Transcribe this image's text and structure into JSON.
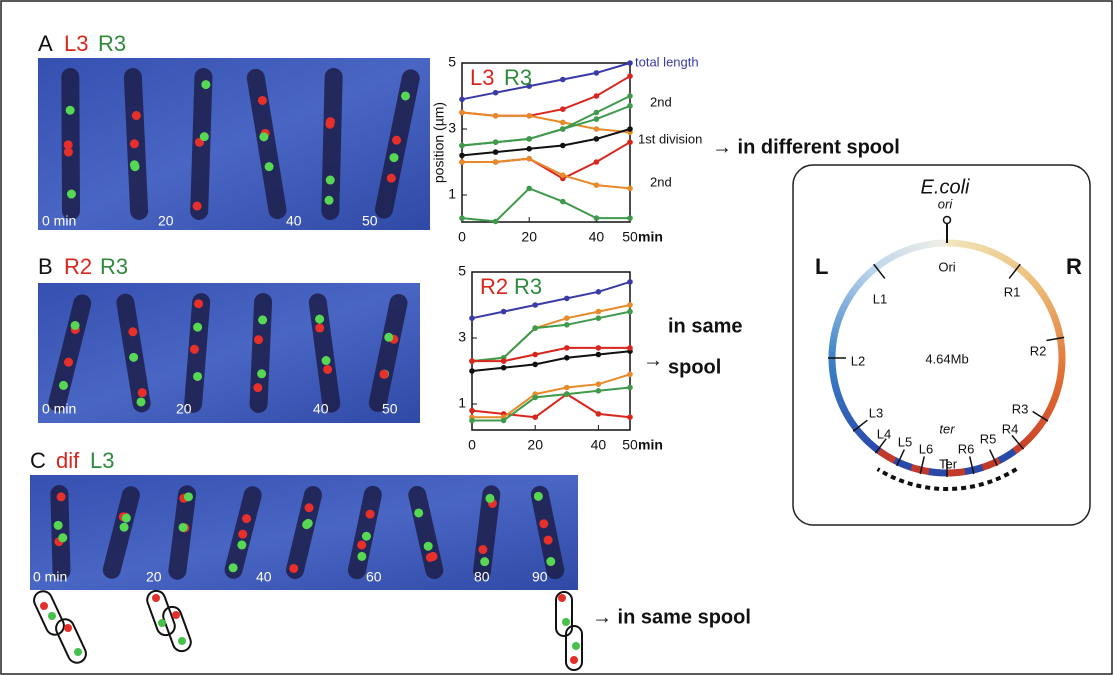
{
  "panel_a": {
    "label": "A",
    "probes": [
      {
        "text": "L3",
        "color": "#d9261c"
      },
      {
        "text": "R3",
        "color": "#2f8a3c"
      }
    ],
    "times": [
      "0 min",
      "20",
      "40",
      "50"
    ]
  },
  "panel_b": {
    "label": "B",
    "probes": [
      {
        "text": "R2",
        "color": "#d9261c"
      },
      {
        "text": "R3",
        "color": "#2f8a3c"
      }
    ],
    "times": [
      "0 min",
      "20",
      "40",
      "50"
    ]
  },
  "panel_c": {
    "label": "C",
    "probes": [
      {
        "text": "dif",
        "color": "#d9261c"
      },
      {
        "text": "L3",
        "color": "#2f8a3c"
      }
    ],
    "times": [
      "0 min",
      "20",
      "40",
      "60",
      "80",
      "90"
    ]
  },
  "chart_data": [
    {
      "type": "line",
      "y_label": "position (µm)",
      "x_unit": "min",
      "markers": [
        {
          "text": "L3",
          "color": "#d9261c"
        },
        {
          "text": "R3",
          "color": "#2f8a3c"
        }
      ],
      "annotations": [
        {
          "text": "total length",
          "color": "#3a3aa8"
        },
        {
          "text": "2nd",
          "color": "#111"
        },
        {
          "text": "1st division",
          "color": "#111"
        },
        {
          "text": "2nd",
          "color": "#111"
        }
      ],
      "x": [
        0,
        10,
        20,
        30,
        40,
        50
      ],
      "xlim": [
        0,
        50
      ],
      "ylim": [
        0,
        5
      ],
      "xticks": [
        0,
        20,
        40,
        50
      ],
      "yticks": [
        1,
        3,
        5
      ],
      "series": [
        {
          "color": "#3a3aa8",
          "values": [
            3.9,
            4.1,
            4.3,
            4.5,
            4.7,
            5.0
          ]
        },
        {
          "color": "#d9261c",
          "values": [
            3.5,
            3.4,
            3.4,
            3.6,
            4.0,
            4.6
          ]
        },
        {
          "color": "#e8892a",
          "values": [
            3.5,
            3.4,
            3.4,
            3.2,
            3.0,
            2.9
          ]
        },
        {
          "color": "#3f9a4c",
          "values": [
            2.5,
            2.6,
            2.7,
            3.0,
            3.5,
            4.0
          ]
        },
        {
          "color": "#3f9a4c",
          "values": [
            2.5,
            2.6,
            2.7,
            3.0,
            3.3,
            3.7
          ]
        },
        {
          "color": "#111111",
          "values": [
            2.2,
            2.3,
            2.4,
            2.5,
            2.7,
            3.0
          ]
        },
        {
          "color": "#d9261c",
          "values": [
            2.0,
            2.0,
            2.1,
            1.5,
            2.0,
            2.6
          ]
        },
        {
          "color": "#e8892a",
          "values": [
            2.0,
            2.0,
            2.1,
            1.6,
            1.3,
            1.2
          ]
        },
        {
          "color": "#3f9a4c",
          "values": [
            0.3,
            0.2,
            1.2,
            0.8,
            0.3,
            0.3
          ]
        }
      ]
    },
    {
      "type": "line",
      "x_unit": "min",
      "markers": [
        {
          "text": "R2",
          "color": "#d9261c"
        },
        {
          "text": "R3",
          "color": "#2f8a3c"
        }
      ],
      "annotations": [],
      "x": [
        0,
        10,
        20,
        30,
        40,
        50
      ],
      "xlim": [
        0,
        50
      ],
      "ylim": [
        0,
        5
      ],
      "xticks": [
        0,
        20,
        40,
        50
      ],
      "yticks": [
        1,
        3,
        5
      ],
      "series": [
        {
          "color": "#3a3aa8",
          "values": [
            3.6,
            3.8,
            4.0,
            4.2,
            4.4,
            4.7
          ]
        },
        {
          "color": "#e8892a",
          "values": [
            2.3,
            2.4,
            3.3,
            3.6,
            3.8,
            4.0
          ]
        },
        {
          "color": "#3f9a4c",
          "values": [
            2.3,
            2.4,
            3.3,
            3.4,
            3.6,
            3.8
          ]
        },
        {
          "color": "#111111",
          "values": [
            2.0,
            2.1,
            2.2,
            2.4,
            2.5,
            2.6
          ]
        },
        {
          "color": "#d9261c",
          "values": [
            2.3,
            2.3,
            2.5,
            2.7,
            2.7,
            2.7
          ]
        },
        {
          "color": "#d9261c",
          "values": [
            0.8,
            0.7,
            0.6,
            1.3,
            0.7,
            0.6
          ]
        },
        {
          "color": "#e8892a",
          "values": [
            0.6,
            0.6,
            1.3,
            1.5,
            1.6,
            1.9
          ]
        },
        {
          "color": "#3f9a4c",
          "values": [
            0.5,
            0.5,
            1.2,
            1.3,
            1.4,
            1.5
          ]
        }
      ]
    }
  ],
  "conclusions": {
    "a": "→ in different spool",
    "b_arrow": "→",
    "b_line1": "in same",
    "b_line2": "spool",
    "c": "→ in same spool"
  },
  "chromosome": {
    "organism": "E.coli",
    "ori_label": "ori",
    "origin": "Ori",
    "left": "L",
    "right": "R",
    "size": "4.64Mb",
    "ter_label": "ter",
    "terminus": "Ter",
    "sites": [
      "L1",
      "L2",
      "L3",
      "L4",
      "L5",
      "L6",
      "R1",
      "R2",
      "R3",
      "R4",
      "R5",
      "R6"
    ]
  }
}
